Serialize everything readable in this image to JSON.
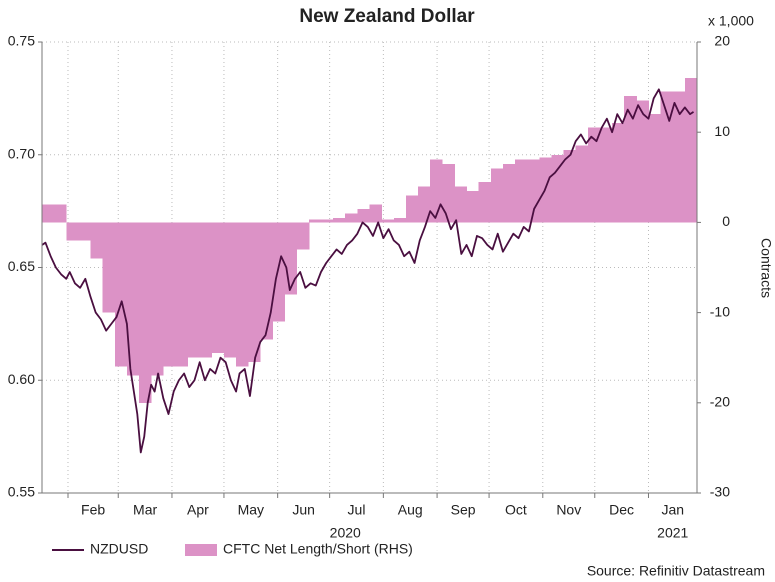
{
  "chart_data": {
    "type": "line_bar_dual",
    "title": "New Zealand Dollar",
    "y2_unit": "x 1,000",
    "y2_label": "Contracts",
    "source": "Source: Refinitiv Datastream",
    "xlim": [
      0,
      378
    ],
    "xticks": [
      {
        "value": 15,
        "label": "Feb"
      },
      {
        "value": 44,
        "label": "Mar"
      },
      {
        "value": 75,
        "label": "Apr"
      },
      {
        "value": 105,
        "label": "May"
      },
      {
        "value": 136,
        "label": "Jun"
      },
      {
        "value": 166,
        "label": "Jul"
      },
      {
        "value": 197,
        "label": "Aug"
      },
      {
        "value": 228,
        "label": "Sep"
      },
      {
        "value": 258,
        "label": "Oct"
      },
      {
        "value": 289,
        "label": "Nov"
      },
      {
        "value": 319,
        "label": "Dec"
      },
      {
        "value": 350,
        "label": "Jan"
      }
    ],
    "x_year_labels": [
      "2020",
      "2021"
    ],
    "ylim": [
      0.55,
      0.75
    ],
    "yticks": [
      0.55,
      {
        "value": 0.6,
        "label": "0.60"
      },
      0.65,
      {
        "value": 0.7,
        "label": "0.70"
      },
      0.75
    ],
    "y2lim": [
      -30,
      20
    ],
    "y2ticks": [
      -30,
      -20,
      -10,
      0,
      10,
      20
    ],
    "grid": true,
    "series": [
      {
        "name": "NZDUSD",
        "kind": "line",
        "color": "#4a0f40",
        "x": [
          0,
          2,
          5,
          8,
          11,
          14,
          16,
          19,
          22,
          25,
          28,
          31,
          34,
          37,
          40,
          43,
          46,
          49,
          51,
          53,
          55,
          57,
          59,
          61,
          63,
          65,
          67,
          70,
          73,
          76,
          79,
          82,
          85,
          88,
          91,
          94,
          97,
          100,
          103,
          106,
          109,
          112,
          114,
          117,
          120,
          123,
          126,
          129,
          132,
          135,
          138,
          141,
          143,
          146,
          149,
          152,
          155,
          158,
          161,
          164,
          167,
          170,
          173,
          176,
          179,
          182,
          185,
          188,
          191,
          194,
          197,
          200,
          203,
          206,
          209,
          212,
          215,
          218,
          221,
          224,
          227,
          230,
          233,
          236,
          239,
          242,
          245,
          248,
          251,
          254,
          257,
          260,
          263,
          266,
          269,
          272,
          275,
          278,
          281,
          284,
          287,
          290,
          293,
          296,
          299,
          302,
          305,
          308,
          311,
          314,
          317,
          320,
          323,
          326,
          329,
          332,
          335,
          338,
          341,
          344,
          347,
          350,
          353,
          356,
          359,
          362,
          365,
          368,
          371,
          374,
          376
        ],
        "values": [
          0.66,
          0.661,
          0.655,
          0.65,
          0.647,
          0.645,
          0.648,
          0.643,
          0.641,
          0.645,
          0.637,
          0.63,
          0.627,
          0.622,
          0.625,
          0.628,
          0.635,
          0.625,
          0.605,
          0.595,
          0.585,
          0.568,
          0.575,
          0.59,
          0.598,
          0.595,
          0.603,
          0.592,
          0.585,
          0.595,
          0.6,
          0.603,
          0.597,
          0.6,
          0.608,
          0.6,
          0.605,
          0.603,
          0.61,
          0.608,
          0.6,
          0.595,
          0.603,
          0.605,
          0.593,
          0.61,
          0.617,
          0.62,
          0.63,
          0.645,
          0.655,
          0.65,
          0.64,
          0.645,
          0.648,
          0.641,
          0.643,
          0.642,
          0.648,
          0.652,
          0.655,
          0.658,
          0.656,
          0.66,
          0.662,
          0.665,
          0.67,
          0.668,
          0.664,
          0.67,
          0.663,
          0.667,
          0.662,
          0.66,
          0.655,
          0.657,
          0.652,
          0.662,
          0.668,
          0.675,
          0.672,
          0.678,
          0.674,
          0.667,
          0.671,
          0.656,
          0.66,
          0.655,
          0.664,
          0.663,
          0.66,
          0.658,
          0.665,
          0.657,
          0.661,
          0.665,
          0.663,
          0.668,
          0.666,
          0.676,
          0.68,
          0.684,
          0.69,
          0.692,
          0.695,
          0.698,
          0.7,
          0.706,
          0.709,
          0.705,
          0.708,
          0.706,
          0.712,
          0.716,
          0.71,
          0.718,
          0.714,
          0.72,
          0.716,
          0.722,
          0.718,
          0.716,
          0.725,
          0.729,
          0.722,
          0.715,
          0.723,
          0.718,
          0.721,
          0.718,
          0.719
        ]
      },
      {
        "name": "CFTC Net Length/Short (RHS)",
        "kind": "area",
        "axis": "y2",
        "color": "#dc92c6",
        "x": [
          0,
          7,
          14,
          21,
          28,
          35,
          42,
          49,
          56,
          63,
          70,
          77,
          84,
          91,
          98,
          105,
          112,
          119,
          126,
          133,
          140,
          147,
          154,
          161,
          168,
          175,
          182,
          189,
          196,
          203,
          210,
          217,
          224,
          231,
          238,
          245,
          252,
          259,
          266,
          273,
          280,
          287,
          294,
          301,
          308,
          315,
          322,
          329,
          336,
          343,
          350,
          357,
          364,
          371
        ],
        "values": [
          2,
          2,
          -2,
          -2,
          -4,
          -10,
          -16,
          -17,
          -20,
          -17,
          -16,
          -16,
          -15,
          -15,
          -14.5,
          -15,
          -16,
          -15.5,
          -13,
          -11,
          -8,
          -3,
          0.3,
          0.3,
          0.5,
          1,
          1.5,
          2,
          0.3,
          0.5,
          3,
          4,
          7,
          6.5,
          4,
          3.5,
          4.5,
          6,
          6.5,
          7,
          7,
          7.2,
          7.5,
          8,
          8.5,
          10.5,
          10.5,
          11,
          14,
          13.5,
          12,
          14.5,
          14.5,
          16
        ]
      }
    ]
  }
}
